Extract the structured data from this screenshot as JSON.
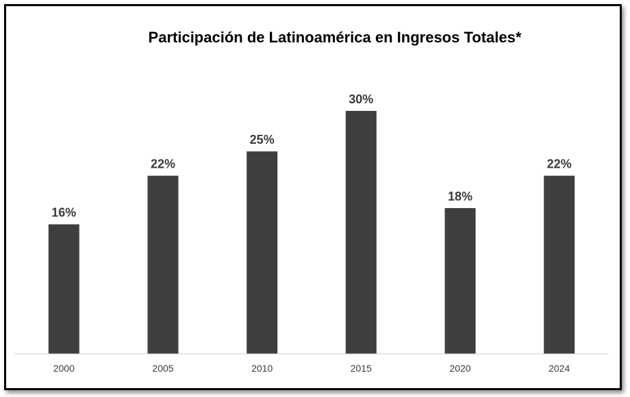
{
  "chart_data": {
    "type": "bar",
    "title": "Participación de Latinoamérica en Ingresos Totales*",
    "categories": [
      "2000",
      "2005",
      "2010",
      "2015",
      "2020",
      "2024"
    ],
    "values": [
      16,
      22,
      25,
      30,
      18,
      22
    ],
    "data_labels": [
      "16%",
      "22%",
      "25%",
      "30%",
      "18%",
      "22%"
    ],
    "xlabel": "",
    "ylabel": "",
    "ylim": [
      0,
      30
    ],
    "grid": false,
    "legend": "none",
    "bar_color": "#3f3f3f",
    "axis_color": "#cfcfcf"
  }
}
